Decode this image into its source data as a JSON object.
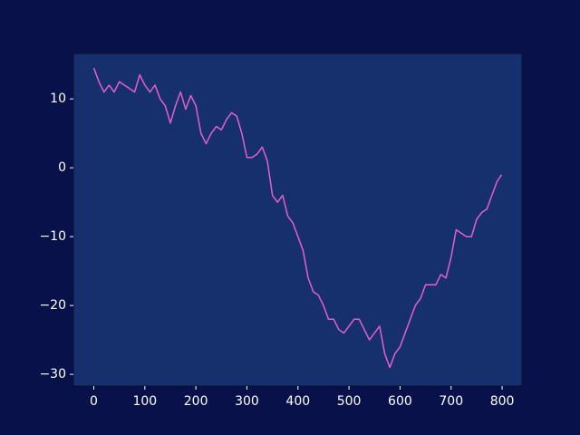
{
  "chart_data": {
    "type": "line",
    "x": [
      0,
      10,
      20,
      30,
      40,
      50,
      60,
      70,
      80,
      90,
      100,
      110,
      120,
      130,
      140,
      150,
      160,
      170,
      180,
      190,
      200,
      210,
      220,
      230,
      240,
      250,
      260,
      270,
      280,
      290,
      300,
      310,
      320,
      330,
      340,
      350,
      360,
      370,
      380,
      390,
      400,
      410,
      420,
      430,
      440,
      450,
      460,
      470,
      480,
      490,
      500,
      510,
      520,
      530,
      540,
      550,
      560,
      570,
      580,
      590,
      600,
      610,
      620,
      630,
      640,
      650,
      660,
      670,
      680,
      690,
      700,
      710,
      720,
      730,
      740,
      750,
      760,
      770,
      780,
      790,
      799
    ],
    "values": [
      14.5,
      12.5,
      11,
      12,
      11,
      12.5,
      12,
      11.5,
      11,
      13.5,
      12,
      11,
      12,
      10,
      9,
      6.5,
      9,
      11,
      8.5,
      10.5,
      9,
      5,
      3.5,
      5,
      6,
      5.5,
      7,
      8,
      7.5,
      5,
      1.5,
      1.5,
      2,
      3,
      1,
      -4,
      -5,
      -4,
      -7,
      -8,
      -10,
      -12,
      -16,
      -18,
      -18.5,
      -20,
      -22,
      -22,
      -23.5,
      -24,
      -23,
      -22,
      -22,
      -23.5,
      -25,
      -24,
      -23,
      -27,
      -29,
      -27,
      -26,
      -24,
      -22,
      -20,
      -19,
      -17,
      -17,
      -17,
      -15.5,
      -16,
      -13,
      -9,
      -9.5,
      -10,
      -10,
      -7.5,
      -6.5,
      -6,
      -4,
      -2,
      -1
    ],
    "color": "#e45fcb",
    "xlim": [
      -39.95,
      838.95
    ],
    "ylim": [
      -31.7,
      16.6
    ],
    "xticks": [
      0,
      100,
      200,
      300,
      400,
      500,
      600,
      700,
      800
    ],
    "yticks": [
      {
        "value": -30,
        "label": "−30"
      },
      {
        "value": -20,
        "label": "−20"
      },
      {
        "value": -10,
        "label": "−10"
      },
      0,
      10
    ]
  }
}
